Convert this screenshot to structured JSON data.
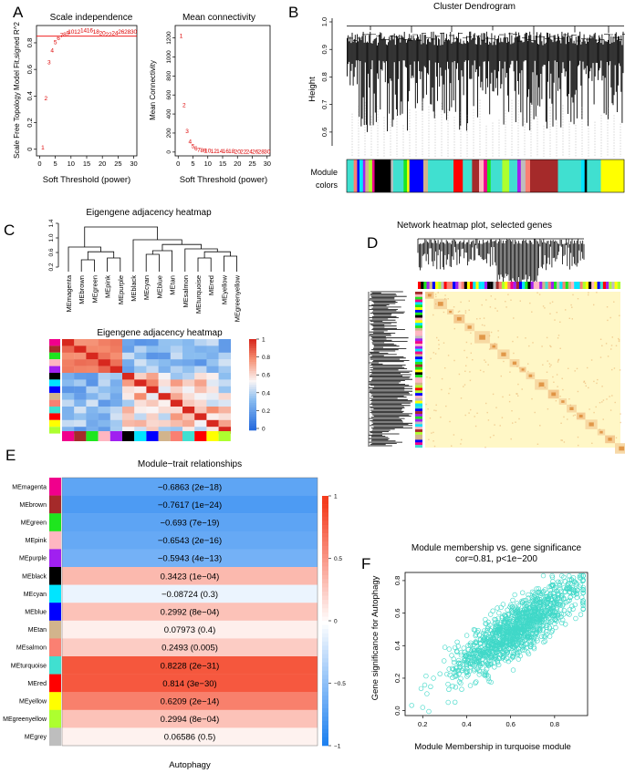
{
  "panels": {
    "A": {
      "label": "A",
      "left": {
        "title": "Scale independence",
        "xlabel": "Soft Threshold (power)",
        "ylabel": "Scale Free Topology Model Fit,signed R^2",
        "x_ticks": [
          "0",
          "5",
          "10",
          "15",
          "20",
          "25",
          "30"
        ],
        "y_ticks": [
          "0",
          "0.2",
          "0.4",
          "0.6",
          "0.8"
        ],
        "points": [
          {
            "label": "1",
            "x": 1,
            "y": 0.02
          },
          {
            "label": "2",
            "x": 2,
            "y": 0.39
          },
          {
            "label": "3",
            "x": 3,
            "y": 0.66
          },
          {
            "label": "4",
            "x": 4,
            "y": 0.75
          },
          {
            "label": "5",
            "x": 5,
            "y": 0.81
          },
          {
            "label": "6",
            "x": 6,
            "y": 0.84
          },
          {
            "label": "7",
            "x": 7,
            "y": 0.86
          },
          {
            "label": "8",
            "x": 8,
            "y": 0.87
          },
          {
            "label": "9",
            "x": 9,
            "y": 0.88
          },
          {
            "label": "10",
            "x": 10,
            "y": 0.89
          },
          {
            "label": "12",
            "x": 12,
            "y": 0.89
          },
          {
            "label": "14",
            "x": 14,
            "y": 0.9
          },
          {
            "label": "16",
            "x": 16,
            "y": 0.9
          },
          {
            "label": "18",
            "x": 18,
            "y": 0.89
          },
          {
            "label": "20",
            "x": 20,
            "y": 0.88
          },
          {
            "label": "22",
            "x": 22,
            "y": 0.87
          },
          {
            "label": "24",
            "x": 24,
            "y": 0.88
          },
          {
            "label": "26",
            "x": 26,
            "y": 0.89
          },
          {
            "label": "28",
            "x": 28,
            "y": 0.89
          },
          {
            "label": "30",
            "x": 30,
            "y": 0.89
          }
        ],
        "hline": 0.85
      },
      "right": {
        "title": "Mean connectivity",
        "xlabel": "Soft Threshold (power)",
        "ylabel": "Mean Connectivity",
        "x_ticks": [
          "0",
          "5",
          "10",
          "15",
          "20",
          "25",
          "30"
        ],
        "y_ticks": [
          "0",
          "200",
          "400",
          "600",
          "800",
          "1000",
          "1200"
        ],
        "points": [
          {
            "label": "1",
            "x": 1,
            "y": 1230
          },
          {
            "label": "2",
            "x": 2,
            "y": 500
          },
          {
            "label": "3",
            "x": 3,
            "y": 230
          },
          {
            "label": "4",
            "x": 4,
            "y": 120
          },
          {
            "label": "5",
            "x": 5,
            "y": 70
          },
          {
            "label": "6",
            "x": 6,
            "y": 45
          },
          {
            "label": "7",
            "x": 7,
            "y": 32
          },
          {
            "label": "8",
            "x": 8,
            "y": 25
          },
          {
            "label": "9",
            "x": 9,
            "y": 22
          },
          {
            "label": "10",
            "x": 10,
            "y": 20
          },
          {
            "label": "12",
            "x": 12,
            "y": 18
          },
          {
            "label": "14",
            "x": 14,
            "y": 17
          },
          {
            "label": "16",
            "x": 16,
            "y": 16
          },
          {
            "label": "18",
            "x": 18,
            "y": 16
          },
          {
            "label": "20",
            "x": 20,
            "y": 15
          },
          {
            "label": "22",
            "x": 22,
            "y": 15
          },
          {
            "label": "24",
            "x": 24,
            "y": 15
          },
          {
            "label": "26",
            "x": 26,
            "y": 14
          },
          {
            "label": "28",
            "x": 28,
            "y": 14
          },
          {
            "label": "30",
            "x": 30,
            "y": 14
          }
        ]
      }
    },
    "B": {
      "label": "B",
      "title": "Cluster Dendrogram",
      "ylabel": "Height",
      "y_ticks": [
        "0.6",
        "0.7",
        "0.8",
        "0.9",
        "1.0"
      ],
      "module_label_1": "Module",
      "module_label_2": "colors"
    },
    "C": {
      "label": "C",
      "title_top": "Eigengene adjacency heatmap",
      "title_heat": "Eigengene adjacency heatmap",
      "y_ticks": [
        "0.2",
        "0.6",
        "1.0",
        "1.4"
      ],
      "leaves": [
        "MEmagenta",
        "MEbrown",
        "MEgreen",
        "MEpink",
        "MEpurple",
        "MEblack",
        "MEcyan",
        "MEblue",
        "MEtan",
        "MEsalmon",
        "MEturquoise",
        "MEred",
        "MEyellow",
        "MEgreenyellow"
      ],
      "colorbar_ticks": [
        "0",
        "0.2",
        "0.4",
        "0.6",
        "0.8",
        "1"
      ]
    },
    "D": {
      "label": "D",
      "title": "Network heatmap plot, selected genes"
    },
    "E": {
      "label": "E",
      "title": "Module−trait relationships",
      "xlabel": "Autophagy",
      "colorbar_ticks": [
        "1",
        "0.5",
        "0",
        "−0.5",
        "−1"
      ]
    },
    "F": {
      "label": "F",
      "title_1": "Module membership vs. gene significance",
      "title_2": "cor=0.81, p<1e−200",
      "xlabel": "Module Membership in turquoise module",
      "ylabel": "Gene significance for Autophagy",
      "x_ticks": [
        "0.2",
        "0.4",
        "0.6",
        "0.8"
      ],
      "y_ticks": [
        "0.0",
        "0.2",
        "0.4",
        "0.6",
        "0.8"
      ]
    }
  },
  "module_colors": {
    "magenta": "#f0008c",
    "brown": "#a52a2a",
    "green": "#1ee61e",
    "pink": "#ffb6c1",
    "purple": "#a020f0",
    "black": "#000000",
    "cyan": "#00e5ff",
    "blue": "#0000ff",
    "tan": "#d2b48c",
    "salmon": "#fa8072",
    "turquoise": "#40e0d0",
    "red": "#ff0000",
    "yellow": "#ffff00",
    "greenyellow": "#adff2f",
    "grey": "#bebebe"
  },
  "chart_data": [
    {
      "type": "scatter",
      "title": "Scale independence",
      "xlabel": "Soft Threshold (power)",
      "ylabel": "Scale Free Topology Model Fit,signed R^2",
      "xlim": [
        0,
        30
      ],
      "ylim": [
        0,
        0.9
      ]
    },
    {
      "type": "scatter",
      "title": "Mean connectivity",
      "xlabel": "Soft Threshold (power)",
      "ylabel": "Mean Connectivity",
      "xlim": [
        0,
        30
      ],
      "ylim": [
        0,
        1300
      ]
    },
    {
      "type": "heatmap",
      "title": "Module−trait relationships",
      "xlabel": "Autophagy",
      "color_range": [
        -1,
        1
      ],
      "rows": [
        {
          "module": "MEmagenta",
          "color": "magenta",
          "cor": -0.6863,
          "label": "−0.6863 (2e−18)"
        },
        {
          "module": "MEbrown",
          "color": "brown",
          "cor": -0.7617,
          "label": "−0.7617 (1e−24)"
        },
        {
          "module": "MEgreen",
          "color": "green",
          "cor": -0.693,
          "label": "−0.693 (7e−19)"
        },
        {
          "module": "MEpink",
          "color": "pink",
          "cor": -0.6543,
          "label": "−0.6543 (2e−16)"
        },
        {
          "module": "MEpurple",
          "color": "purple",
          "cor": -0.5943,
          "label": "−0.5943 (4e−13)"
        },
        {
          "module": "MEblack",
          "color": "black",
          "cor": 0.3423,
          "label": "0.3423 (1e−04)"
        },
        {
          "module": "MEcyan",
          "color": "cyan",
          "cor": -0.08724,
          "label": "−0.08724 (0.3)"
        },
        {
          "module": "MEblue",
          "color": "blue",
          "cor": 0.2992,
          "label": "0.2992 (8e−04)"
        },
        {
          "module": "MEtan",
          "color": "tan",
          "cor": 0.07973,
          "label": "0.07973 (0.4)"
        },
        {
          "module": "MEsalmon",
          "color": "salmon",
          "cor": 0.2493,
          "label": "0.2493 (0.005)"
        },
        {
          "module": "MEturquoise",
          "color": "turquoise",
          "cor": 0.8228,
          "label": "0.8228 (2e−31)"
        },
        {
          "module": "MEred",
          "color": "red",
          "cor": 0.814,
          "label": "0.814 (3e−30)"
        },
        {
          "module": "MEyellow",
          "color": "yellow",
          "cor": 0.6209,
          "label": "0.6209 (2e−14)"
        },
        {
          "module": "MEgreenyellow",
          "color": "greenyellow",
          "cor": 0.2994,
          "label": "0.2994 (8e−04)"
        },
        {
          "module": "MEgrey",
          "color": "grey",
          "cor": 0.06586,
          "label": "0.06586 (0.5)"
        }
      ]
    },
    {
      "type": "scatter",
      "title": "Module membership vs. gene significance",
      "subtitle": "cor=0.81, p<1e−200",
      "xlabel": "Module Membership in turquoise module",
      "ylabel": "Gene significance for Autophagy",
      "xlim": [
        0.12,
        0.95
      ],
      "ylim": [
        -0.03,
        0.85
      ],
      "n_points": 1300,
      "trend": {
        "slope": 0.85,
        "intercept": -0.03,
        "sd": 0.08
      }
    }
  ]
}
